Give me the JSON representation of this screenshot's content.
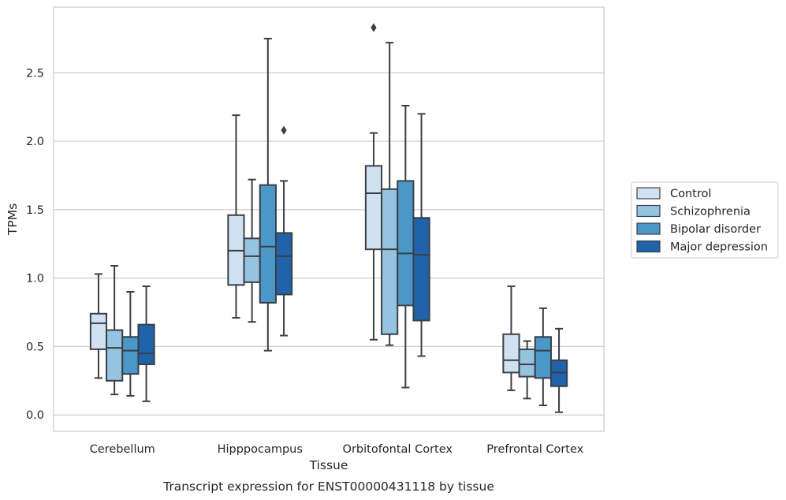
{
  "chart_data": {
    "type": "box",
    "xlabel": "Tissue",
    "ylabel": "TPMs",
    "caption": "Transcript expression for ENST00000431118 by tissue",
    "ylim": [
      -0.12,
      2.98
    ],
    "yticks": [
      0.0,
      0.5,
      1.0,
      1.5,
      2.0,
      2.5
    ],
    "ytick_labels": [
      "0.0",
      "0.5",
      "1.0",
      "1.5",
      "2.0",
      "2.5"
    ],
    "grid": "horizontal",
    "legend_position": "right",
    "categories": [
      "Cerebellum",
      "Hipppocampus",
      "Orbitofontal Cortex",
      "Prefrontal Cortex"
    ],
    "series": [
      {
        "name": "Control",
        "color": "#d0e1f2",
        "boxes": [
          {
            "whislo": 0.27,
            "q1": 0.48,
            "med": 0.67,
            "q3": 0.74,
            "whishi": 1.03,
            "fliers": []
          },
          {
            "whislo": 0.71,
            "q1": 0.95,
            "med": 1.2,
            "q3": 1.46,
            "whishi": 2.19,
            "fliers": []
          },
          {
            "whislo": 0.55,
            "q1": 1.21,
            "med": 1.62,
            "q3": 1.82,
            "whishi": 2.06,
            "fliers": [
              2.83
            ]
          },
          {
            "whislo": 0.18,
            "q1": 0.31,
            "med": 0.4,
            "q3": 0.59,
            "whishi": 0.94,
            "fliers": []
          }
        ]
      },
      {
        "name": "Schizophrenia",
        "color": "#94c4df",
        "boxes": [
          {
            "whislo": 0.15,
            "q1": 0.25,
            "med": 0.49,
            "q3": 0.62,
            "whishi": 1.09,
            "fliers": []
          },
          {
            "whislo": 0.68,
            "q1": 0.97,
            "med": 1.16,
            "q3": 1.29,
            "whishi": 1.72,
            "fliers": []
          },
          {
            "whislo": 0.51,
            "q1": 0.59,
            "med": 1.21,
            "q3": 1.65,
            "whishi": 2.72,
            "fliers": []
          },
          {
            "whislo": 0.12,
            "q1": 0.28,
            "med": 0.37,
            "q3": 0.48,
            "whishi": 0.54,
            "fliers": []
          }
        ]
      },
      {
        "name": "Bipolar disorder",
        "color": "#4a98c9",
        "boxes": [
          {
            "whislo": 0.14,
            "q1": 0.3,
            "med": 0.47,
            "q3": 0.57,
            "whishi": 0.9,
            "fliers": []
          },
          {
            "whislo": 0.47,
            "q1": 0.82,
            "med": 1.23,
            "q3": 1.68,
            "whishi": 2.75,
            "fliers": []
          },
          {
            "whislo": 0.2,
            "q1": 0.8,
            "med": 1.18,
            "q3": 1.71,
            "whishi": 2.26,
            "fliers": []
          },
          {
            "whislo": 0.07,
            "q1": 0.27,
            "med": 0.47,
            "q3": 0.57,
            "whishi": 0.78,
            "fliers": []
          }
        ]
      },
      {
        "name": "Major depression",
        "color": "#2163aa",
        "boxes": [
          {
            "whislo": 0.1,
            "q1": 0.37,
            "med": 0.45,
            "q3": 0.66,
            "whishi": 0.94,
            "fliers": []
          },
          {
            "whislo": 0.58,
            "q1": 0.88,
            "med": 1.16,
            "q3": 1.33,
            "whishi": 1.71,
            "fliers": [
              2.08
            ]
          },
          {
            "whislo": 0.43,
            "q1": 0.69,
            "med": 1.17,
            "q3": 1.44,
            "whishi": 2.2,
            "fliers": []
          },
          {
            "whislo": 0.02,
            "q1": 0.21,
            "med": 0.31,
            "q3": 0.4,
            "whishi": 0.63,
            "fliers": []
          }
        ]
      }
    ]
  }
}
